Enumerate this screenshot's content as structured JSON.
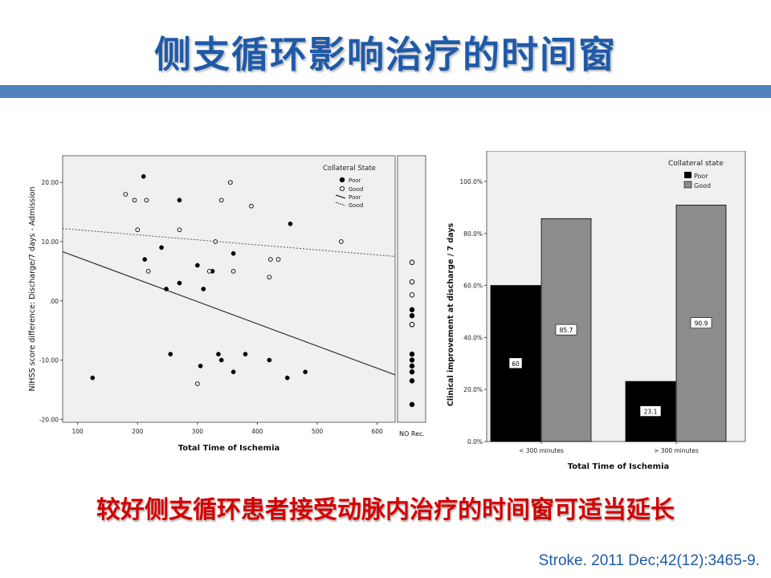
{
  "slide": {
    "title": "侧支循环影响治疗的时间窗",
    "subtitle": "较好侧支循环患者接受动脉内治疗的时间窗可适当延长",
    "citation": "Stroke. 2011 Dec;42(12):3465-9."
  },
  "chart_data": [
    {
      "type": "scatter",
      "xlabel": "Total Time of Ischemia",
      "ylabel": "NIHSS score difference: Discharge/7 days - Admission",
      "xlim": [
        75,
        630
      ],
      "ylim": [
        -20.5,
        24.5
      ],
      "xticks": [
        "100",
        "200",
        "300",
        "400",
        "500",
        "600"
      ],
      "yticks": [
        "20.00",
        "10.00",
        ".00",
        "-10.00",
        "-20.00"
      ],
      "ytick_values": [
        20,
        10,
        0,
        -10,
        -20
      ],
      "xtick_values": [
        100,
        200,
        300,
        400,
        500,
        600
      ],
      "extra_category": "NO Rec.",
      "legend_title": "Collateral State",
      "legend": [
        "Poor",
        "Good",
        "Poor",
        "Good"
      ],
      "series": [
        {
          "name": "Poor",
          "marker": "filled",
          "points": [
            [
              125,
              -13
            ],
            [
              210,
              21
            ],
            [
              212,
              7
            ],
            [
              240,
              9
            ],
            [
              248,
              2
            ],
            [
              255,
              -9
            ],
            [
              270,
              17
            ],
            [
              270,
              3
            ],
            [
              300,
              6
            ],
            [
              305,
              -11
            ],
            [
              310,
              2
            ],
            [
              325,
              5
            ],
            [
              335,
              -9
            ],
            [
              340,
              -10
            ],
            [
              360,
              8
            ],
            [
              360,
              -12
            ],
            [
              380,
              -9
            ],
            [
              420,
              -10
            ],
            [
              450,
              -13
            ],
            [
              455,
              13
            ],
            [
              480,
              -12
            ]
          ],
          "no_rec": [
            -1.5,
            -2.5,
            -4,
            -9,
            -10,
            -11,
            -12,
            -13.5,
            -17.5
          ]
        },
        {
          "name": "Good",
          "marker": "open",
          "points": [
            [
              180,
              18
            ],
            [
              195,
              17
            ],
            [
              200,
              12
            ],
            [
              215,
              17
            ],
            [
              218,
              5
            ],
            [
              270,
              12
            ],
            [
              320,
              5
            ],
            [
              330,
              10
            ],
            [
              340,
              17
            ],
            [
              355,
              20
            ],
            [
              360,
              5
            ],
            [
              390,
              16
            ],
            [
              420,
              4
            ],
            [
              422,
              7
            ],
            [
              435,
              7
            ],
            [
              540,
              10
            ],
            [
              300,
              -14
            ]
          ],
          "no_rec": [
            6.5,
            3.2,
            1,
            -4
          ]
        }
      ],
      "fit_lines": [
        {
          "name": "Poor",
          "style": "solid",
          "x": [
            75,
            630
          ],
          "y": [
            8.3,
            -12.5
          ]
        },
        {
          "name": "Good",
          "style": "dotted",
          "x": [
            75,
            630
          ],
          "y": [
            12.2,
            7.5
          ]
        }
      ]
    },
    {
      "type": "bar",
      "xlabel": "Total Time of Ischemia",
      "ylabel": "Clinical improvement at discharge / 7 days",
      "ylim": [
        0,
        100
      ],
      "yticks": [
        "0.0%",
        "20.0%",
        "40.0%",
        "60.0%",
        "80.0%",
        "100.0%"
      ],
      "ytick_values": [
        0,
        20,
        40,
        60,
        80,
        100
      ],
      "categories": [
        "< 300 minutes",
        "> 300 minutes"
      ],
      "legend_title": "Collateral state",
      "series": [
        {
          "name": "Poor",
          "color": "#000000",
          "values": [
            60,
            23.1
          ],
          "labels": [
            "60",
            "23.1"
          ]
        },
        {
          "name": "Good",
          "color": "#8c8c8c",
          "values": [
            85.7,
            90.9
          ],
          "labels": [
            "85.7",
            "90.9"
          ]
        }
      ]
    }
  ],
  "colors": {
    "title": "#1f5aa8",
    "title_bar": "#4f81bd",
    "subtitle": "#d40000",
    "citation": "#1f5aa8",
    "plot_bg": "#f0f0f0"
  }
}
